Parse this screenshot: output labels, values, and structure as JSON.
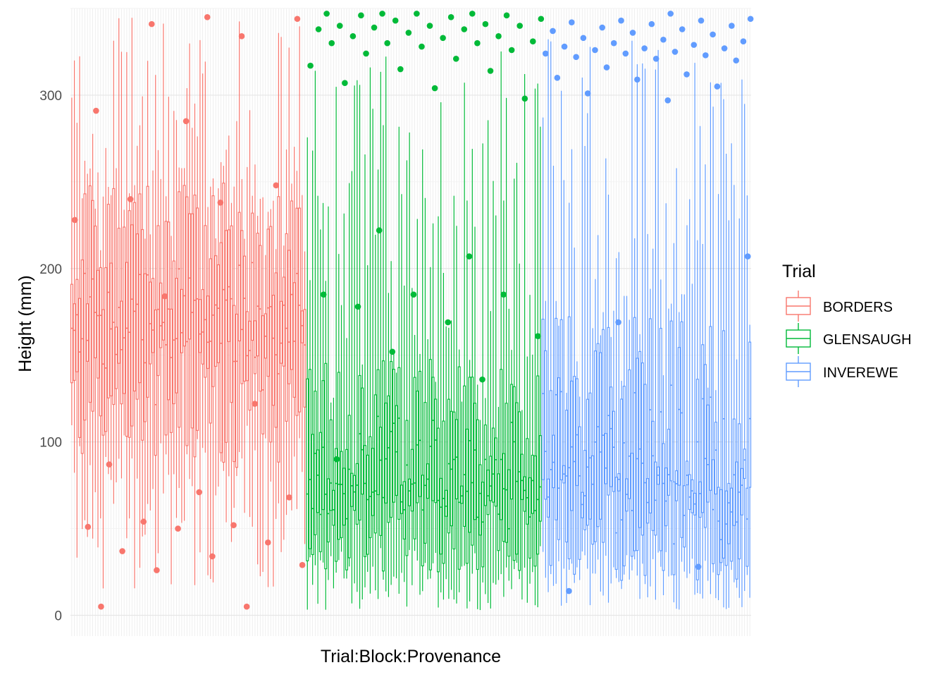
{
  "chart_data": {
    "type": "boxplot",
    "title": "",
    "xlabel": "Trial:Block:Provenance",
    "ylabel": "Height (mm)",
    "ylim": [
      -12,
      350
    ],
    "yticks": [
      0,
      100,
      200,
      300
    ],
    "xtick_labels_shown": false,
    "grid": true,
    "legend": {
      "title": "Trial",
      "position": "right",
      "entries": [
        "BORDERS",
        "GLENSAUGH",
        "INVEREWE"
      ]
    },
    "series": [
      {
        "name": "BORDERS",
        "color": "#F8766D",
        "n_boxes": 90,
        "median_range": [
          130,
          210
        ],
        "q1_range": [
          85,
          160
        ],
        "q3_range": [
          165,
          250
        ],
        "whisker_low_range": [
          15,
          110
        ],
        "whisker_high_range": [
          200,
          345
        ],
        "outliers": [
          5,
          5,
          26,
          29,
          34,
          37,
          42,
          50,
          51,
          52,
          54,
          68,
          71,
          87,
          122,
          184,
          228,
          238,
          240,
          248,
          285,
          291,
          334,
          341,
          344,
          345
        ]
      },
      {
        "name": "GLENSAUGH",
        "color": "#00BA38",
        "n_boxes": 90,
        "median_range": [
          45,
          110
        ],
        "q1_range": [
          25,
          70
        ],
        "q3_range": [
          70,
          150
        ],
        "whisker_low_range": [
          3,
          40
        ],
        "whisker_high_range": [
          110,
          330
        ],
        "outliers": [
          90,
          136,
          152,
          161,
          169,
          178,
          185,
          185,
          185,
          207,
          222,
          298,
          304,
          307,
          314,
          315,
          317,
          321,
          324,
          326,
          328,
          330,
          330,
          330,
          331,
          333,
          334,
          334,
          336,
          338,
          338,
          339,
          340,
          340,
          340,
          341,
          343,
          344,
          345,
          346,
          346,
          347,
          347,
          347,
          347
        ]
      },
      {
        "name": "INVEREWE",
        "color": "#619CFF",
        "n_boxes": 80,
        "median_range": [
          35,
          120
        ],
        "q1_range": [
          20,
          80
        ],
        "q3_range": [
          70,
          175
        ],
        "whisker_low_range": [
          3,
          40
        ],
        "whisker_high_range": [
          120,
          345
        ],
        "outliers": [
          14,
          28,
          169,
          207,
          297,
          301,
          305,
          309,
          310,
          312,
          316,
          320,
          321,
          322,
          323,
          324,
          324,
          325,
          326,
          327,
          327,
          328,
          329,
          330,
          331,
          332,
          333,
          335,
          336,
          337,
          338,
          339,
          340,
          341,
          342,
          343,
          343,
          344,
          347
        ]
      }
    ]
  }
}
